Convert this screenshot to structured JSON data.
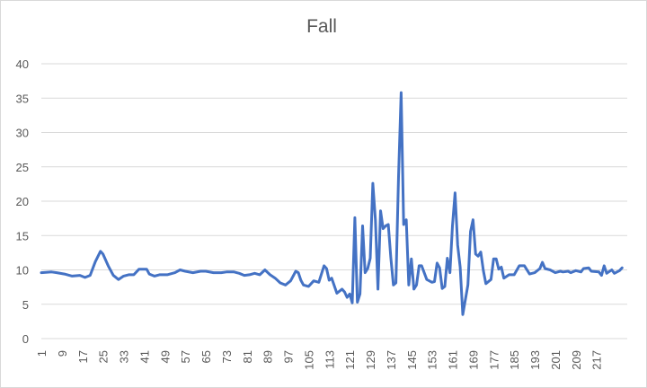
{
  "chart_data": {
    "type": "line",
    "title": "Fall",
    "xlabel": "",
    "ylabel": "",
    "ylim": [
      0,
      40
    ],
    "y_ticks": [
      "0",
      "5",
      "10",
      "15",
      "20",
      "25",
      "30",
      "35",
      "40"
    ],
    "x_range": [
      1,
      222
    ],
    "x_ticks": [
      "1",
      "9",
      "17",
      "25",
      "33",
      "41",
      "49",
      "57",
      "65",
      "73",
      "81",
      "89",
      "97",
      "105",
      "113",
      "121",
      "129",
      "137",
      "145",
      "153",
      "161",
      "169",
      "177",
      "185",
      "193",
      "201",
      "209",
      "217"
    ],
    "grid": "horizontal",
    "legend": "none",
    "line_color": "#4472c4",
    "series": [
      {
        "points": [
          [
            1,
            9.6
          ],
          [
            5,
            9.7
          ],
          [
            7,
            9.6
          ],
          [
            10,
            9.4
          ],
          [
            13,
            9.1
          ],
          [
            16,
            9.2
          ],
          [
            18,
            8.9
          ],
          [
            20,
            9.2
          ],
          [
            22,
            11.2
          ],
          [
            24,
            12.7
          ],
          [
            25,
            12.3
          ],
          [
            27,
            10.6
          ],
          [
            29,
            9.2
          ],
          [
            31,
            8.6
          ],
          [
            33,
            9.1
          ],
          [
            35,
            9.3
          ],
          [
            37,
            9.3
          ],
          [
            39,
            10.1
          ],
          [
            42,
            10.1
          ],
          [
            43,
            9.4
          ],
          [
            45,
            9.1
          ],
          [
            47,
            9.3
          ],
          [
            50,
            9.3
          ],
          [
            53,
            9.6
          ],
          [
            55,
            10.0
          ],
          [
            57,
            9.8
          ],
          [
            60,
            9.6
          ],
          [
            63,
            9.8
          ],
          [
            65,
            9.8
          ],
          [
            68,
            9.6
          ],
          [
            71,
            9.6
          ],
          [
            73,
            9.7
          ],
          [
            76,
            9.7
          ],
          [
            78,
            9.5
          ],
          [
            80,
            9.2
          ],
          [
            82,
            9.3
          ],
          [
            84,
            9.5
          ],
          [
            86,
            9.3
          ],
          [
            88,
            10.0
          ],
          [
            90,
            9.3
          ],
          [
            92,
            8.8
          ],
          [
            94,
            8.1
          ],
          [
            96,
            7.8
          ],
          [
            98,
            8.4
          ],
          [
            100,
            9.8
          ],
          [
            101,
            9.6
          ],
          [
            102,
            8.5
          ],
          [
            103,
            7.8
          ],
          [
            105,
            7.6
          ],
          [
            107,
            8.4
          ],
          [
            109,
            8.2
          ],
          [
            111,
            10.6
          ],
          [
            112,
            10.2
          ],
          [
            113,
            8.5
          ],
          [
            114,
            8.8
          ],
          [
            116,
            6.6
          ],
          [
            118,
            7.2
          ],
          [
            119,
            6.8
          ],
          [
            120,
            6.0
          ],
          [
            121,
            6.5
          ],
          [
            122,
            5.2
          ],
          [
            123,
            17.6
          ],
          [
            124,
            5.3
          ],
          [
            125,
            6.5
          ],
          [
            126,
            16.4
          ],
          [
            127,
            9.6
          ],
          [
            128,
            10.2
          ],
          [
            129,
            11.7
          ],
          [
            130,
            22.6
          ],
          [
            131,
            17.2
          ],
          [
            132,
            7.2
          ],
          [
            133,
            18.6
          ],
          [
            134,
            16.0
          ],
          [
            135,
            16.4
          ],
          [
            136,
            16.6
          ],
          [
            137,
            11.8
          ],
          [
            138,
            7.8
          ],
          [
            139,
            8.1
          ],
          [
            140,
            23.6
          ],
          [
            141,
            35.8
          ],
          [
            142,
            16.6
          ],
          [
            143,
            17.3
          ],
          [
            144,
            7.8
          ],
          [
            145,
            11.6
          ],
          [
            146,
            7.2
          ],
          [
            147,
            7.8
          ],
          [
            148,
            10.6
          ],
          [
            149,
            10.6
          ],
          [
            151,
            8.6
          ],
          [
            153,
            8.2
          ],
          [
            154,
            8.3
          ],
          [
            155,
            11.0
          ],
          [
            156,
            10.3
          ],
          [
            157,
            7.3
          ],
          [
            158,
            7.6
          ],
          [
            159,
            11.7
          ],
          [
            160,
            9.6
          ],
          [
            161,
            16.4
          ],
          [
            162,
            21.2
          ],
          [
            163,
            13.6
          ],
          [
            164,
            10.4
          ],
          [
            165,
            3.5
          ],
          [
            167,
            7.8
          ],
          [
            168,
            15.6
          ],
          [
            169,
            17.3
          ],
          [
            170,
            12.3
          ],
          [
            171,
            12.0
          ],
          [
            172,
            12.6
          ],
          [
            173,
            9.9
          ],
          [
            174,
            8.0
          ],
          [
            176,
            8.6
          ],
          [
            177,
            11.6
          ],
          [
            178,
            11.6
          ],
          [
            179,
            10.1
          ],
          [
            180,
            10.4
          ],
          [
            181,
            8.8
          ],
          [
            183,
            9.3
          ],
          [
            185,
            9.3
          ],
          [
            187,
            10.6
          ],
          [
            189,
            10.6
          ],
          [
            191,
            9.4
          ],
          [
            193,
            9.6
          ],
          [
            195,
            10.2
          ],
          [
            196,
            11.1
          ],
          [
            197,
            10.2
          ],
          [
            199,
            10.0
          ],
          [
            201,
            9.6
          ],
          [
            203,
            9.8
          ],
          [
            204,
            9.7
          ],
          [
            206,
            9.8
          ],
          [
            207,
            9.6
          ],
          [
            209,
            9.9
          ],
          [
            211,
            9.7
          ],
          [
            212,
            10.2
          ],
          [
            214,
            10.3
          ],
          [
            215,
            9.8
          ],
          [
            218,
            9.7
          ],
          [
            219,
            9.2
          ],
          [
            220,
            10.6
          ],
          [
            221,
            9.5
          ],
          [
            223,
            10.0
          ],
          [
            224,
            9.5
          ],
          [
            226,
            9.9
          ],
          [
            227,
            10.3
          ]
        ]
      }
    ]
  }
}
